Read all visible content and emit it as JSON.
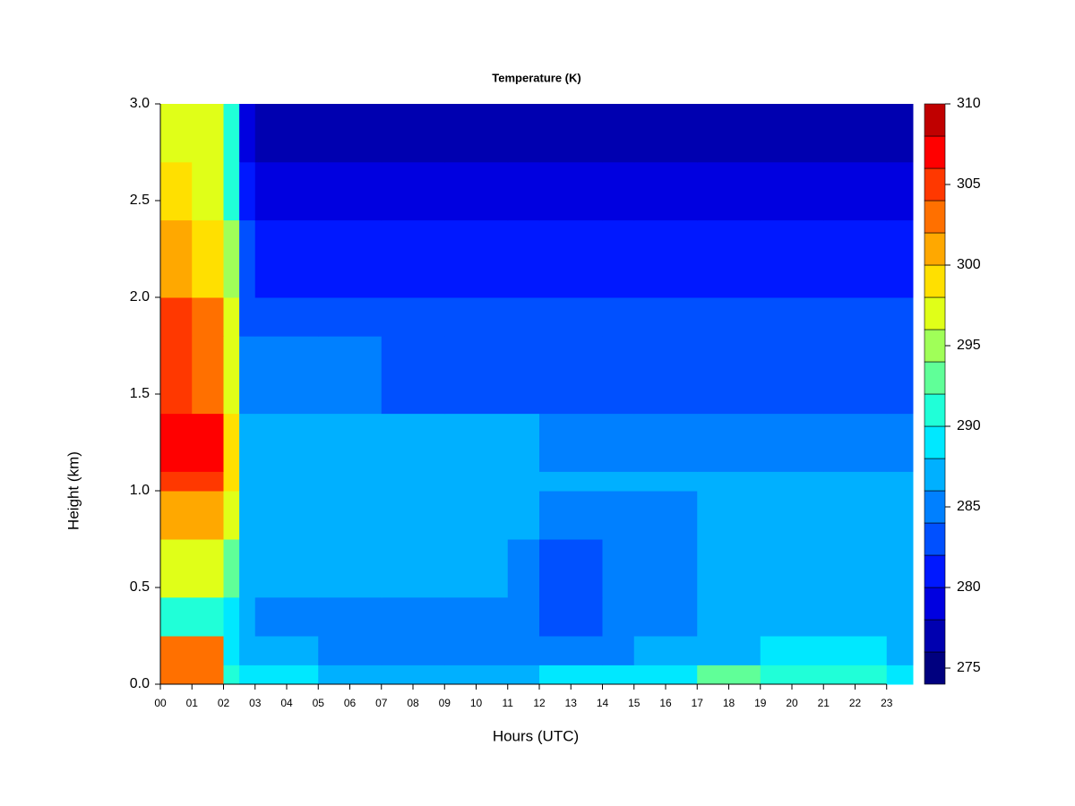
{
  "chart_data": {
    "type": "heatmap",
    "title": "Temperature (K)",
    "x_label": "Hours (UTC)",
    "y_label": "Height (km)",
    "xlim": [
      0,
      23.83
    ],
    "ylim": [
      0,
      3
    ],
    "xticks": [
      {
        "value": 0,
        "label": "00"
      },
      {
        "value": 1,
        "label": "01"
      },
      {
        "value": 2,
        "label": "02"
      },
      {
        "value": 3,
        "label": "03"
      },
      {
        "value": 4,
        "label": "04"
      },
      {
        "value": 5,
        "label": "05"
      },
      {
        "value": 6,
        "label": "06"
      },
      {
        "value": 7,
        "label": "07"
      },
      {
        "value": 8,
        "label": "08"
      },
      {
        "value": 9,
        "label": "09"
      },
      10,
      11,
      12,
      13,
      14,
      15,
      16,
      17,
      18,
      19,
      20,
      21,
      22,
      23
    ],
    "yticks": [
      {
        "value": 0,
        "label": "0.0"
      },
      0.5,
      {
        "value": 1,
        "label": "1.0"
      },
      1.5,
      {
        "value": 2,
        "label": "2.0"
      },
      2.5,
      {
        "value": 3,
        "label": "3.0"
      }
    ],
    "xbins": [
      0,
      1,
      2,
      2.5,
      3,
      5,
      7,
      9,
      11,
      12,
      14,
      15,
      17,
      19,
      21,
      23,
      23.83
    ],
    "ybins": [
      0,
      0.1,
      0.25,
      0.45,
      0.75,
      1.0,
      1.1,
      1.4,
      1.8,
      2.0,
      2.4,
      2.7,
      3.0
    ],
    "z": [
      [
        303,
        303,
        291,
        289,
        288,
        287,
        287,
        287,
        287,
        288,
        289,
        289,
        293,
        291,
        290,
        289
      ],
      [
        303,
        302,
        289,
        287,
        286,
        285,
        285,
        285,
        285,
        284,
        285,
        286,
        287,
        289,
        288,
        287
      ],
      [
        291,
        291,
        289,
        286,
        285,
        285,
        285,
        285,
        285,
        283,
        284,
        285,
        286,
        287,
        287,
        287
      ],
      [
        296,
        296,
        293,
        287,
        286,
        286,
        286,
        286,
        285,
        283,
        284,
        285,
        286,
        287,
        287,
        287
      ],
      [
        301,
        301,
        296,
        287,
        287,
        286,
        286,
        286,
        286,
        285,
        285,
        285,
        286,
        286,
        286,
        286
      ],
      [
        305,
        305,
        298,
        287,
        287,
        287,
        286,
        286,
        286,
        286,
        286,
        286,
        286,
        286,
        286,
        286
      ],
      [
        307,
        307,
        298,
        287,
        286,
        286,
        286,
        286,
        286,
        285,
        285,
        285,
        285,
        285,
        285,
        285
      ],
      [
        304,
        303,
        297,
        285,
        284,
        284,
        283,
        283,
        283,
        283,
        283,
        283,
        283,
        283,
        283,
        283
      ],
      [
        304,
        303,
        296,
        283,
        283,
        282,
        282,
        282,
        282,
        282,
        282,
        282,
        282,
        282,
        282,
        282
      ],
      [
        300,
        299,
        294,
        282,
        281,
        281,
        281,
        281,
        281,
        281,
        281,
        281,
        281,
        281,
        281,
        281
      ],
      [
        298,
        297,
        291,
        280,
        279,
        279,
        279,
        279,
        279,
        279,
        279,
        279,
        279,
        279,
        279,
        279
      ],
      [
        297,
        296,
        290,
        278,
        277,
        277,
        277,
        277,
        277,
        277,
        277,
        277,
        277,
        277,
        277,
        277
      ]
    ],
    "levels": [
      274,
      276,
      278,
      280,
      282,
      284,
      286,
      288,
      290,
      292,
      294,
      296,
      298,
      300,
      302,
      304,
      306,
      308,
      310
    ],
    "colors": [
      "#00007f",
      "#0000b0",
      "#0000e0",
      "#0018ff",
      "#0050ff",
      "#0080ff",
      "#00b0ff",
      "#00e8ff",
      "#20ffd8",
      "#60ff98",
      "#a0ff58",
      "#e0ff18",
      "#ffe000",
      "#ffa800",
      "#ff7000",
      "#ff3800",
      "#ff0000",
      "#c00000"
    ],
    "clim": [
      274,
      310
    ],
    "cticks": [
      275,
      280,
      285,
      290,
      295,
      300,
      305,
      310
    ]
  }
}
